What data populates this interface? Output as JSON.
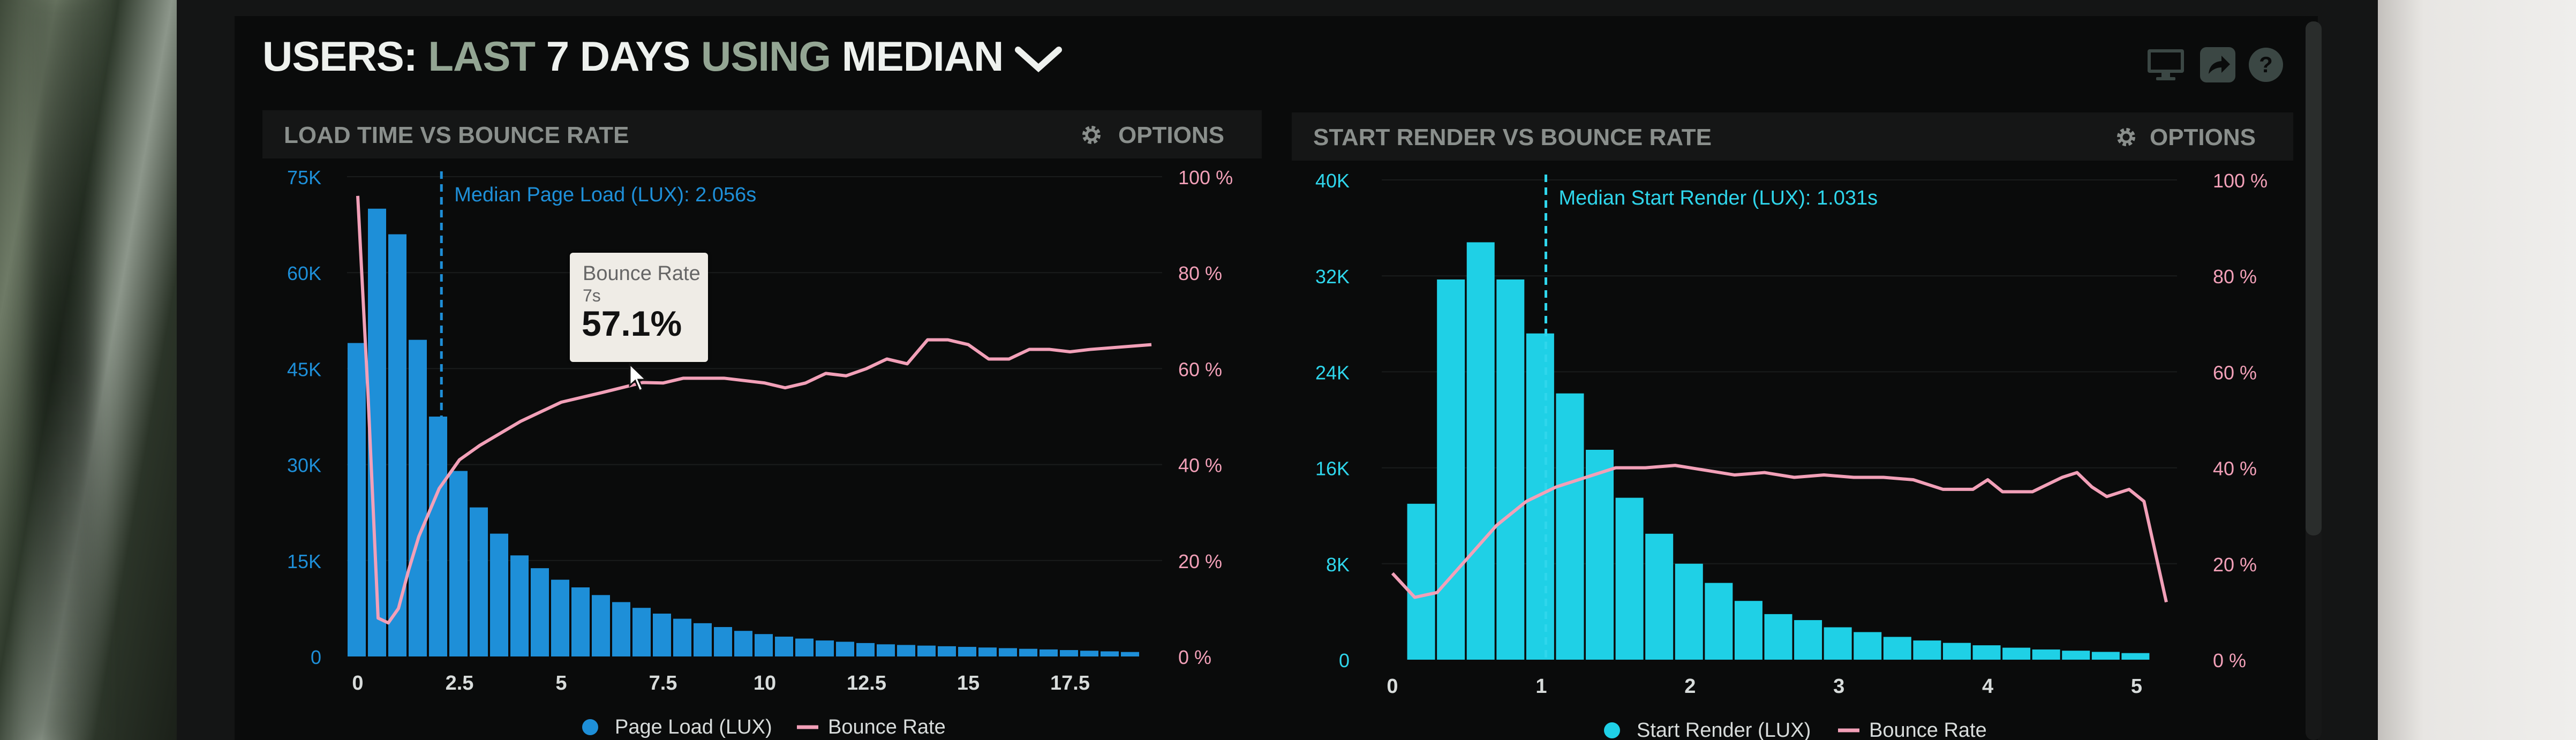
{
  "header": {
    "title_parts": [
      {
        "text": "USERS:",
        "style": "w"
      },
      {
        "text": "LAST",
        "style": "g"
      },
      {
        "text": "7 DAYS",
        "style": "w"
      },
      {
        "text": "USING",
        "style": "g"
      },
      {
        "text": "MEDIAN",
        "style": "w"
      }
    ],
    "icons": [
      "monitor-icon",
      "share-icon",
      "help-icon"
    ]
  },
  "tooltip": {
    "title": "Bounce Rate",
    "subtitle": "7s",
    "value": "57.1%"
  },
  "panels": [
    {
      "title": "LOAD TIME VS BOUNCE RATE",
      "options_label": "OPTIONS"
    },
    {
      "title": "START RENDER VS BOUNCE RATE",
      "options_label": "OPTIONS"
    }
  ],
  "colors": {
    "bar_left": "#1e8fd8",
    "bar_right": "#1fd0e6",
    "bounce_line": "#f2a0b8",
    "axis_left": "#1e8fd8",
    "axis_left_right_chart": "#2fd6ec",
    "axis_right": "#f28fb0"
  },
  "chart_data": [
    {
      "type": "bar",
      "title": "LOAD TIME VS BOUNCE RATE",
      "ylim": [
        0,
        75000
      ],
      "y_ticks": [
        "0",
        "15K",
        "30K",
        "45K",
        "60K",
        "75K"
      ],
      "y2lim": [
        0,
        100
      ],
      "y2_ticks": [
        "0 %",
        "20 %",
        "40 %",
        "60 %",
        "80 %",
        "100 %"
      ],
      "xlim": [
        0,
        19.5
      ],
      "x_ticks": [
        "0",
        "2.5",
        "5",
        "7.5",
        "10",
        "12.5",
        "15",
        "17.5"
      ],
      "x_tick_values": [
        0,
        2.5,
        5,
        7.5,
        10,
        12.5,
        15,
        17.5
      ],
      "marker": {
        "x": 2.056,
        "label": "Median Page Load (LUX): 2.056s"
      },
      "series": [
        {
          "name": "Page Load (LUX)",
          "kind": "bar",
          "x": [
            0,
            0.5,
            1,
            1.5,
            2,
            2.5,
            3,
            3.5,
            4,
            4.5,
            5,
            5.5,
            6,
            6.5,
            7,
            7.5,
            8,
            8.5,
            9,
            9.5,
            10,
            10.5,
            11,
            11.5,
            12,
            12.5,
            13,
            13.5,
            14,
            14.5,
            15,
            15.5,
            16,
            16.5,
            17,
            17.5,
            18,
            18.5,
            19
          ],
          "values": [
            49000,
            70000,
            66000,
            49500,
            37500,
            29000,
            23300,
            19200,
            15800,
            13800,
            12000,
            10800,
            9600,
            8500,
            7600,
            6700,
            5900,
            5200,
            4600,
            4000,
            3500,
            3100,
            2800,
            2500,
            2300,
            2100,
            1900,
            1800,
            1700,
            1600,
            1500,
            1400,
            1300,
            1200,
            1100,
            1000,
            900,
            800,
            700
          ]
        },
        {
          "name": "Bounce Rate",
          "kind": "line",
          "x": [
            0,
            0.25,
            0.5,
            0.75,
            1,
            1.25,
            1.5,
            1.75,
            2,
            2.5,
            3,
            4,
            5,
            6,
            7,
            7.5,
            8,
            9,
            10,
            10.5,
            11,
            11.5,
            12,
            12.5,
            13,
            13.5,
            14,
            14.5,
            15,
            15.5,
            16,
            16.5,
            17,
            17.5,
            18,
            19.5
          ],
          "values": [
            96,
            55,
            8,
            7,
            10,
            18,
            25,
            30,
            35,
            41,
            44,
            49,
            53,
            55,
            57.1,
            57,
            58,
            58,
            57,
            56,
            57,
            59,
            58.5,
            60,
            62,
            61,
            66,
            66,
            65,
            62,
            62,
            64,
            64,
            63.5,
            64,
            65
          ]
        }
      ],
      "legend": [
        "Page Load (LUX)",
        "Bounce Rate"
      ]
    },
    {
      "type": "bar",
      "title": "START RENDER VS BOUNCE RATE",
      "ylim": [
        0,
        40000
      ],
      "y_ticks": [
        "0",
        "8K",
        "16K",
        "24K",
        "32K",
        "40K"
      ],
      "y2lim": [
        0,
        100
      ],
      "y2_ticks": [
        "0 %",
        "20 %",
        "40 %",
        "60 %",
        "80 %",
        "100 %"
      ],
      "xlim": [
        0,
        5.2
      ],
      "x_ticks": [
        "0",
        "1",
        "2",
        "3",
        "4",
        "5"
      ],
      "x_tick_values": [
        0,
        1,
        2,
        3,
        4,
        5
      ],
      "marker": {
        "x": 1.031,
        "label": "Median Start Render (LUX): 1.031s"
      },
      "series": [
        {
          "name": "Start Render (LUX)",
          "kind": "bar",
          "x": [
            0.2,
            0.4,
            0.6,
            0.8,
            1.0,
            1.2,
            1.4,
            1.6,
            1.8,
            2.0,
            2.2,
            2.4,
            2.6,
            2.8,
            3.0,
            3.2,
            3.4,
            3.6,
            3.8,
            4.0,
            4.2,
            4.4,
            4.6,
            4.8,
            5.0
          ],
          "values": [
            13000,
            31700,
            34800,
            31700,
            27200,
            22200,
            17500,
            13500,
            10500,
            8000,
            6400,
            4900,
            3800,
            3300,
            2700,
            2300,
            1900,
            1600,
            1400,
            1200,
            1000,
            850,
            750,
            650,
            550
          ]
        },
        {
          "name": "Bounce Rate",
          "kind": "line",
          "x": [
            0,
            0.15,
            0.3,
            0.5,
            0.7,
            0.9,
            1.1,
            1.3,
            1.5,
            1.7,
            1.9,
            2.1,
            2.3,
            2.5,
            2.7,
            2.9,
            3.1,
            3.3,
            3.5,
            3.7,
            3.9,
            4.0,
            4.1,
            4.3,
            4.5,
            4.6,
            4.7,
            4.8,
            4.95,
            5.05,
            5.2
          ],
          "values": [
            18,
            13,
            14,
            21,
            28,
            33,
            36,
            38,
            40,
            40,
            40.5,
            39.5,
            38.5,
            39,
            38,
            38.5,
            38,
            38,
            37.5,
            35.5,
            35.5,
            37.5,
            35,
            35,
            38,
            39,
            36,
            34,
            35.5,
            33,
            12
          ]
        }
      ],
      "legend": [
        "Start Render (LUX)",
        "Bounce Rate"
      ]
    }
  ]
}
